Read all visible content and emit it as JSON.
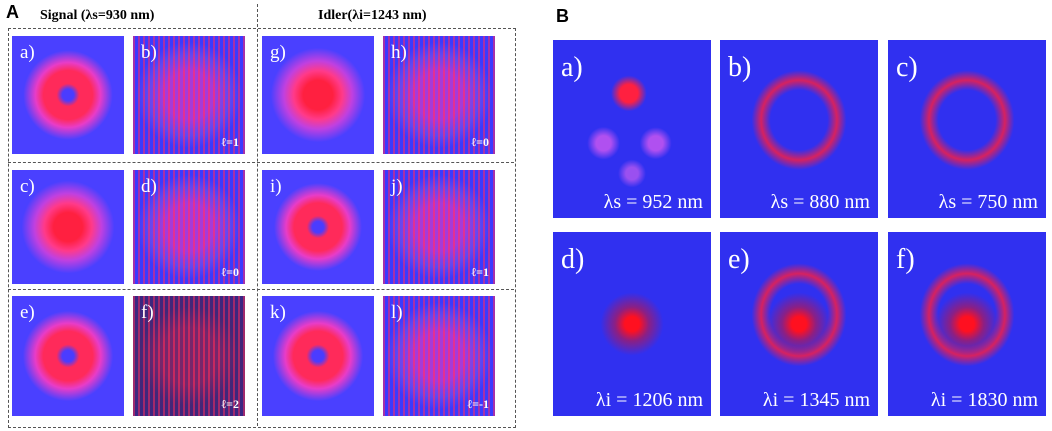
{
  "panel_a": {
    "label": "A",
    "headers": [
      "Signal (λs=930 nm)",
      "Idler(λi=1243 nm)"
    ],
    "images": [
      {
        "label": "a)"
      },
      {
        "label": "b)",
        "mode": "ℓ=1"
      },
      {
        "label": "g)"
      },
      {
        "label": "h)",
        "mode": "ℓ=0"
      },
      {
        "label": "c)"
      },
      {
        "label": "d)",
        "mode": "ℓ=0"
      },
      {
        "label": "i)"
      },
      {
        "label": "j)",
        "mode": "ℓ=1"
      },
      {
        "label": "e)"
      },
      {
        "label": "f)",
        "mode": "ℓ=2"
      },
      {
        "label": "k)"
      },
      {
        "label": "l)",
        "mode": "ℓ=-1"
      }
    ]
  },
  "panel_b": {
    "label": "B",
    "images": [
      {
        "label": "a)",
        "wavelength": "λs = 952 nm"
      },
      {
        "label": "b)",
        "wavelength": "λs = 880 nm"
      },
      {
        "label": "c)",
        "wavelength": "λs = 750 nm"
      },
      {
        "label": "d)",
        "wavelength": "λi = 1206 nm"
      },
      {
        "label": "e)",
        "wavelength": "λi = 1345 nm"
      },
      {
        "label": "f)",
        "wavelength": "λi = 1830 nm"
      }
    ]
  }
}
